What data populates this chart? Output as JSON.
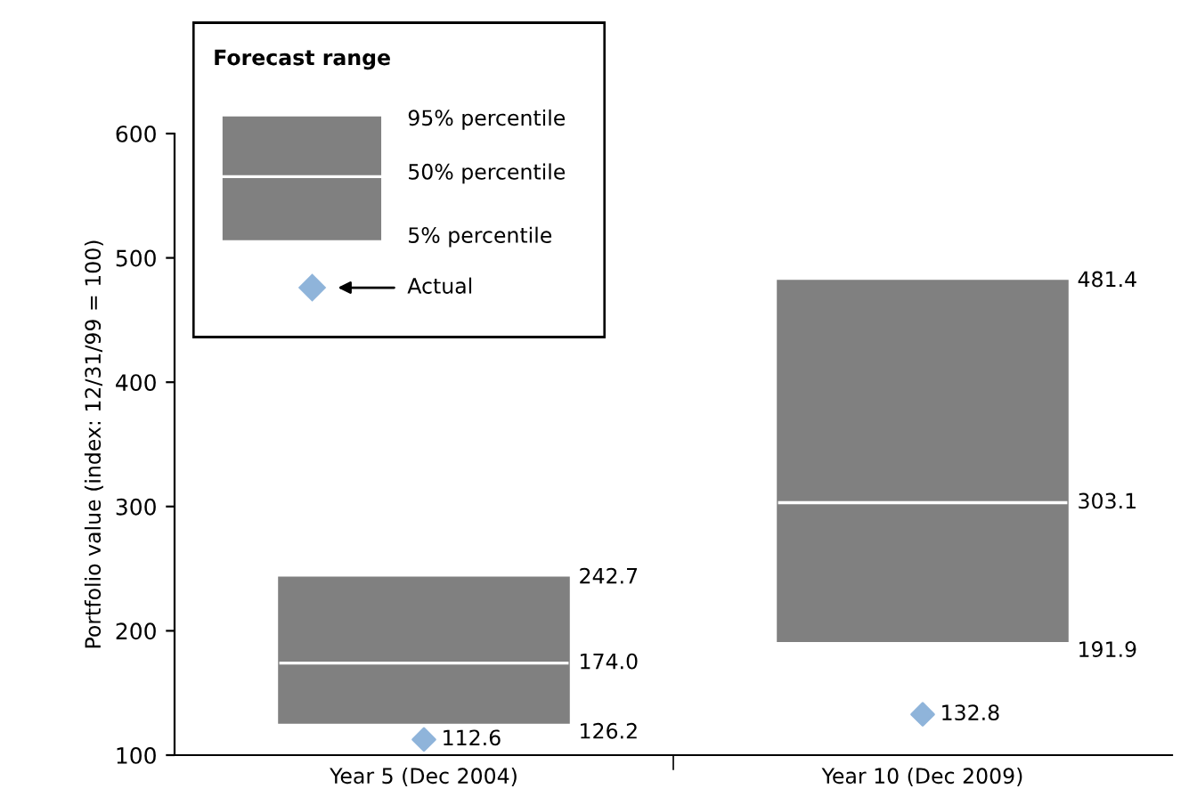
{
  "chart_data": {
    "type": "box",
    "ylabel": "Portfolio value (index: 12/31/99 = 100)",
    "categories": [
      "Year 5 (Dec 2004)",
      "Year 10 (Dec 2009)"
    ],
    "ylim": [
      100,
      600
    ],
    "yticks": [
      100,
      200,
      300,
      400,
      500,
      600
    ],
    "legend": "top left",
    "legend_title": "Forecast range",
    "annotations": [
      "95% percentile",
      "50% percentile",
      "5% percentile",
      "242.7",
      "174.0",
      "126.2",
      "481.4",
      "303.1",
      "191.9"
    ],
    "data_labels": true,
    "series": [
      {
        "color": "#808080",
        "boxes": [
          {
            "low": 126.2,
            "q1": 126.2,
            "median": 174.0,
            "q3": 242.7,
            "high": 242.7
          },
          {
            "low": 191.9,
            "q1": 191.9,
            "median": 303.1,
            "q3": 481.4,
            "high": 481.4
          }
        ]
      },
      {
        "type": "scatter",
        "name": "Actual",
        "color": "#8fb4da",
        "marker": "diamond",
        "values": [
          112.6,
          132.8
        ]
      }
    ]
  }
}
